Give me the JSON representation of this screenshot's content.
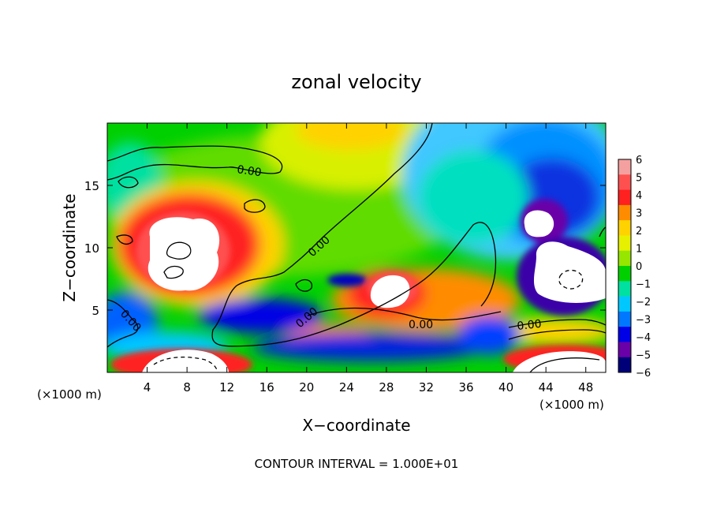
{
  "chart_data": {
    "type": "heatmap",
    "title": "zonal velocity",
    "xlabel": "X−coordinate",
    "ylabel": "Z−coordinate",
    "x_unit_note": "(×1000 m)",
    "y_unit_note": "(×1000 m)",
    "xlim": [
      0,
      50
    ],
    "ylim": [
      0,
      20
    ],
    "x_ticks": [
      4,
      8,
      12,
      16,
      20,
      24,
      28,
      32,
      36,
      40,
      44,
      48
    ],
    "y_ticks": [
      5,
      10,
      15
    ],
    "x_tick_labels": [
      "4",
      "8",
      "12",
      "16",
      "20",
      "24",
      "28",
      "32",
      "36",
      "40",
      "44",
      "48"
    ],
    "y_tick_labels": [
      "5",
      "10",
      "15"
    ],
    "colorbar": {
      "levels": [
        6,
        5,
        4,
        3,
        2,
        1,
        0,
        -1,
        -2,
        -3,
        -4,
        -5,
        -6
      ],
      "labels": [
        "6",
        "5",
        "4",
        "3",
        "2",
        "1",
        "0",
        "−1",
        "−2",
        "−3",
        "−4",
        "−5",
        "−6"
      ],
      "colors": [
        "#f5a0a0",
        "#ff5050",
        "#ff2020",
        "#ff8c00",
        "#ffd200",
        "#e6f000",
        "#96e600",
        "#00d000",
        "#00e0a0",
        "#00c8ff",
        "#0078ff",
        "#0000e6",
        "#6a00a8",
        "#000078"
      ]
    },
    "contour_interval_label": "CONTOUR INTERVAL = 1.000E+01",
    "contour_labels": [
      "0.00",
      "0.00",
      "0.00",
      "0.00",
      "0.00",
      "0.00"
    ],
    "field_regions": [
      {
        "name": "white-max-left",
        "x": 7.5,
        "z": 10.5,
        "rx": 4,
        "rz": 3.2,
        "level": 7
      },
      {
        "name": "white-max-mid",
        "x": 29,
        "z": 6.3,
        "rx": 2.4,
        "rz": 1.6,
        "level": 7
      },
      {
        "name": "white-min-right-upper",
        "x": 43.5,
        "z": 12.2,
        "rx": 1.6,
        "rz": 1.2,
        "level": -7
      },
      {
        "name": "white-min-right",
        "x": 46,
        "z": 8.2,
        "rx": 3.6,
        "rz": 3.2,
        "level": -7
      },
      {
        "name": "white-bottom-left",
        "x": 8.5,
        "z": 0.8,
        "rx": 5.5,
        "rz": 1.8,
        "level": 7
      },
      {
        "name": "white-bottom-right",
        "x": 46,
        "z": 0.8,
        "rx": 6,
        "rz": 1.6,
        "level": 7
      }
    ]
  }
}
